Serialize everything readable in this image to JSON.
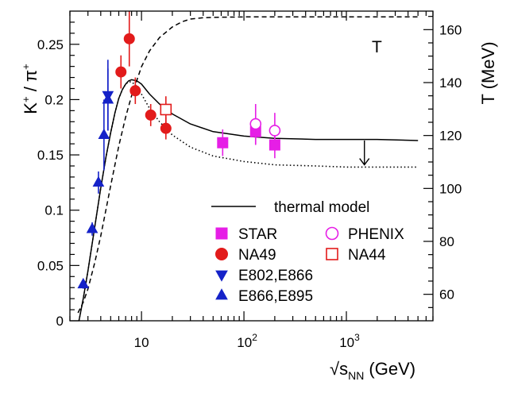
{
  "chart_data": {
    "type": "scatter",
    "title": "",
    "xlabel": "√s_NN (GeV)",
    "ylabel": "K⁺ / π⁺",
    "y2label": "T (MeV)",
    "xscale": "log",
    "xlim": [
      2,
      7000
    ],
    "ylim": [
      0,
      0.28
    ],
    "y2lim": [
      50,
      167
    ],
    "x_ticks": [
      {
        "v": 10,
        "label": "10"
      },
      {
        "v": 100,
        "label": "10",
        "exp": "2"
      },
      {
        "v": 1000,
        "label": "10",
        "exp": "3"
      }
    ],
    "y_ticks": [
      {
        "v": 0,
        "label": "0"
      },
      {
        "v": 0.05,
        "label": "0.05"
      },
      {
        "v": 0.1,
        "label": "0.1"
      },
      {
        "v": 0.15,
        "label": "0.15"
      },
      {
        "v": 0.2,
        "label": "0.2"
      },
      {
        "v": 0.25,
        "label": "0.25"
      }
    ],
    "y2_ticks": [
      {
        "v": 60,
        "label": "60"
      },
      {
        "v": 80,
        "label": "80"
      },
      {
        "v": 100,
        "label": "100"
      },
      {
        "v": 120,
        "label": "120"
      },
      {
        "v": 140,
        "label": "140"
      },
      {
        "v": 160,
        "label": "160"
      }
    ],
    "temperature_label": "T",
    "legend_title": "thermal model",
    "curves": [
      {
        "name": "thermal model",
        "style": "solid",
        "x": [
          2.45,
          2.7,
          3.0,
          3.5,
          4.0,
          4.5,
          5.0,
          5.5,
          6.0,
          6.5,
          7.0,
          7.5,
          8.0,
          9.0,
          10,
          12,
          15,
          20,
          30,
          50,
          100,
          200,
          500,
          1000,
          2000,
          5000
        ],
        "y": [
          0.0,
          0.02,
          0.045,
          0.085,
          0.12,
          0.148,
          0.17,
          0.188,
          0.201,
          0.209,
          0.214,
          0.217,
          0.218,
          0.217,
          0.214,
          0.205,
          0.196,
          0.187,
          0.178,
          0.171,
          0.167,
          0.165,
          0.164,
          0.164,
          0.164,
          0.163
        ]
      },
      {
        "name": "dotted",
        "style": "dotted",
        "x": [
          2.45,
          2.7,
          3.0,
          3.5,
          4.0,
          4.5,
          5.0,
          5.5,
          6.0,
          6.5,
          7.0,
          7.5,
          8.0,
          9.0,
          10,
          12,
          15,
          20,
          30,
          50,
          100,
          200,
          500,
          1000,
          2000,
          5000
        ],
        "y": [
          0.0,
          0.02,
          0.045,
          0.085,
          0.12,
          0.148,
          0.17,
          0.188,
          0.201,
          0.209,
          0.214,
          0.216,
          0.216,
          0.212,
          0.205,
          0.192,
          0.18,
          0.168,
          0.157,
          0.149,
          0.144,
          0.141,
          0.14,
          0.139,
          0.139,
          0.139
        ]
      },
      {
        "name": "T (dashed)",
        "style": "dashed",
        "axis": "right",
        "x": [
          2.4,
          2.7,
          3.0,
          3.5,
          4.0,
          4.5,
          5.0,
          6.0,
          7.0,
          8.0,
          10,
          12,
          15,
          20,
          25,
          30,
          40,
          60,
          100,
          1000,
          5000
        ],
        "y": [
          53,
          57,
          62,
          72,
          82,
          92,
          101,
          116,
          127,
          135,
          146,
          152,
          157,
          161,
          163,
          164,
          164.5,
          164.7,
          164.8,
          164.8,
          164.8
        ]
      }
    ],
    "arrow": {
      "x": 1500,
      "y_from": 0.163,
      "y_to": 0.141
    },
    "series": [
      {
        "name": "STAR",
        "marker": "square",
        "filled": true,
        "color": "#e61ee6",
        "points": [
          {
            "x": 62,
            "y": 0.161,
            "err": 0.012
          },
          {
            "x": 130,
            "y": 0.171,
            "err": 0.012
          },
          {
            "x": 200,
            "y": 0.159,
            "err": 0.012
          }
        ]
      },
      {
        "name": "PHENIX",
        "marker": "circle",
        "filled": false,
        "color": "#e61ee6",
        "points": [
          {
            "x": 130,
            "y": 0.178,
            "err": 0.018
          },
          {
            "x": 200,
            "y": 0.172,
            "err": 0.016
          }
        ]
      },
      {
        "name": "NA49",
        "marker": "circle",
        "filled": true,
        "color": "#e21b1b",
        "points": [
          {
            "x": 6.3,
            "y": 0.225,
            "err": 0.015
          },
          {
            "x": 7.6,
            "y": 0.255,
            "err": 0.025
          },
          {
            "x": 8.7,
            "y": 0.208,
            "err": 0.012
          },
          {
            "x": 12.3,
            "y": 0.186,
            "err": 0.01
          },
          {
            "x": 17.3,
            "y": 0.174,
            "err": 0.01
          }
        ]
      },
      {
        "name": "NA44",
        "marker": "square",
        "filled": false,
        "color": "#e21b1b",
        "points": [
          {
            "x": 17.3,
            "y": 0.191,
            "err": 0.012
          }
        ]
      },
      {
        "name": "E802,E866",
        "marker": "triangle-down",
        "filled": true,
        "color": "#1522c8",
        "points": [
          {
            "x": 4.7,
            "y": 0.204,
            "err": 0.032
          }
        ]
      },
      {
        "name": "E866,E895",
        "marker": "triangle-up",
        "filled": true,
        "color": "#1522c8",
        "points": [
          {
            "x": 2.7,
            "y": 0.033,
            "err": 0.004
          },
          {
            "x": 3.3,
            "y": 0.083,
            "err": 0.006
          },
          {
            "x": 3.8,
            "y": 0.125,
            "err": 0.01
          },
          {
            "x": 4.3,
            "y": 0.168,
            "err": 0.032
          },
          {
            "x": 4.7,
            "y": 0.2,
            "err": 0.028
          }
        ]
      }
    ],
    "legend": [
      {
        "label": "STAR",
        "marker": "square",
        "filled": true,
        "color": "#e61ee6"
      },
      {
        "label": "PHENIX",
        "marker": "circle",
        "filled": false,
        "color": "#e61ee6"
      },
      {
        "label": "NA49",
        "marker": "circle",
        "filled": true,
        "color": "#e21b1b"
      },
      {
        "label": "NA44",
        "marker": "square",
        "filled": false,
        "color": "#e21b1b"
      },
      {
        "label": "E802,E866",
        "marker": "triangle-down",
        "filled": true,
        "color": "#1522c8"
      },
      {
        "label": "E866,E895",
        "marker": "triangle-up",
        "filled": true,
        "color": "#1522c8"
      }
    ]
  }
}
